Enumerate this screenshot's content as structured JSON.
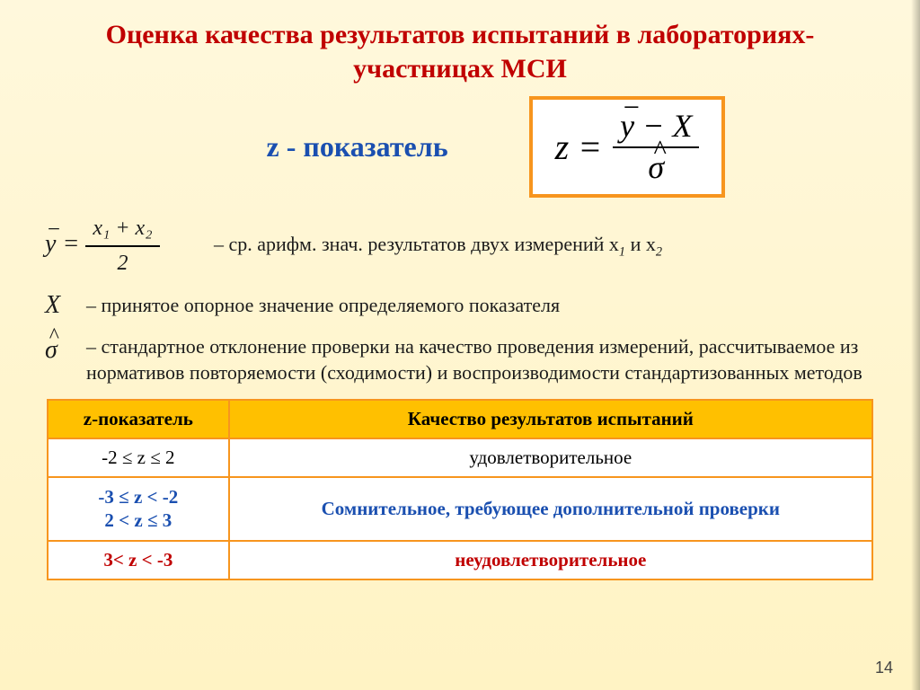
{
  "title": "Оценка качества результатов испытаний в лабораториях-участницах МСИ",
  "z_label": "z - показатель",
  "formula": {
    "lhs": "z =",
    "numerator_parts": {
      "ybar": "y",
      "minus": " − ",
      "X": "X"
    },
    "denominator": "σ"
  },
  "definitions": {
    "mean_formula": {
      "lhs": "y",
      "eq": " = ",
      "num": "x₁ + x₂",
      "den": "2"
    },
    "mean_text": "– ср. арифм. знач. результатов двух измерений x",
    "mean_text_tail": " и x",
    "X_sym": "X",
    "X_text": "– принятое опорное значение определяемого показателя",
    "sigma_sym": "σ",
    "sigma_text": "– стандартное отклонение проверки на качество проведения измерений, рассчитываемое из нормативов повторяемости (сходимости) и воспроизводимости стандартизованных методов"
  },
  "table": {
    "header": [
      "z-показатель",
      "Качество результатов испытаний"
    ],
    "rows": [
      {
        "range": "-2 ≤ z ≤ 2",
        "quality": "удовлетворительное",
        "range_color": "cell-dark",
        "quality_color": "cell-dark"
      },
      {
        "range": "-3 ≤ z < -2\n2 < z ≤ 3",
        "quality": "Сомнительное, требующее дополнительной проверки",
        "range_color": "cell-blue",
        "quality_color": "cell-blue"
      },
      {
        "range": "3< z < -3",
        "quality": "неудовлетворительное",
        "range_color": "cell-red",
        "quality_color": "cell-red"
      }
    ]
  },
  "page_number": "14",
  "colors": {
    "title": "#c00000",
    "accent_blue": "#1a4fb0",
    "border_orange": "#f7951e",
    "header_bg": "#ffc000"
  }
}
